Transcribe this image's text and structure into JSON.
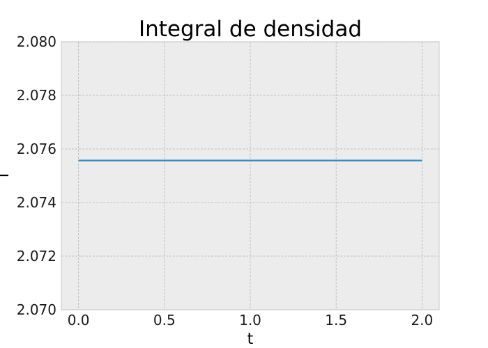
{
  "chart_data": {
    "type": "line",
    "title": "Integral de densidad",
    "xlabel": "t",
    "ylabel": "I",
    "xlim": [
      -0.1,
      2.1
    ],
    "ylim": [
      2.07,
      2.08
    ],
    "xticks": [
      "0.0",
      "0.5",
      "1.0",
      "1.5",
      "2.0"
    ],
    "xtick_values": [
      0.0,
      0.5,
      1.0,
      1.5,
      2.0
    ],
    "yticks": [
      "2.070",
      "2.072",
      "2.074",
      "2.076",
      "2.078",
      "2.080"
    ],
    "ytick_values": [
      2.07,
      2.072,
      2.074,
      2.076,
      2.078,
      2.08
    ],
    "grid": true,
    "series": [
      {
        "color": "#348abd",
        "x": [
          0.0,
          2.0
        ],
        "y": [
          2.07557,
          2.07557
        ]
      }
    ]
  }
}
